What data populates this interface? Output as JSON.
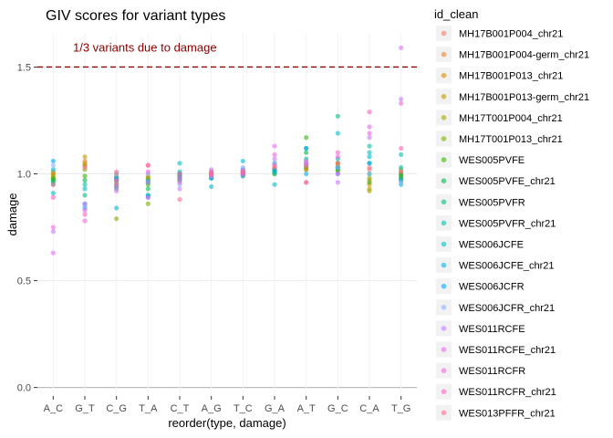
{
  "chart_data": {
    "type": "scatter",
    "title": "GIV scores for variant types",
    "xlabel": "reorder(type, damage)",
    "ylabel": "damage",
    "categories": [
      "A_C",
      "G_T",
      "C_G",
      "T_A",
      "C_T",
      "A_G",
      "T_C",
      "G_A",
      "A_T",
      "G_C",
      "C_A",
      "T_G"
    ],
    "ylim": [
      -0.04,
      1.66
    ],
    "yticks": [
      0.0,
      0.5,
      1.0,
      1.5
    ],
    "ytick_labels": [
      "0.0",
      "0.5",
      "1.0",
      "1.5"
    ],
    "grid": true,
    "legend": {
      "title": "id_clean",
      "position": "right"
    },
    "reference_line": {
      "y": 1.5,
      "label": "1/3 variants due to damage",
      "color": "#8b0000",
      "style": "dashed"
    },
    "series": [
      {
        "name": "MH17B001P004_chr21",
        "color": "#F8766D",
        "values": [
          1.0,
          1.04,
          0.97,
          0.96,
          0.99,
          1.0,
          1.0,
          1.01,
          1.02,
          1.03,
          1.02,
          1.01
        ]
      },
      {
        "name": "MH17B001P004-germ_chr21",
        "color": "#EA8331",
        "values": [
          0.98,
          1.06,
          1.0,
          0.97,
          0.98,
          1.01,
          1.01,
          1.03,
          1.04,
          1.05,
          0.97,
          0.99
        ]
      },
      {
        "name": "MH17B001P013_chr21",
        "color": "#D89000",
        "values": [
          1.01,
          1.05,
          0.99,
          0.98,
          0.97,
          1.0,
          0.99,
          1.02,
          1.03,
          1.04,
          0.95,
          0.98
        ]
      },
      {
        "name": "MH17B001P013-germ_chr21",
        "color": "#C09B00",
        "values": [
          1.0,
          1.08,
          0.98,
          0.99,
          0.99,
          1.0,
          1.0,
          1.01,
          1.02,
          1.02,
          0.93,
          1.0
        ]
      },
      {
        "name": "MH17T001P004_chr21",
        "color": "#A3A500",
        "values": [
          0.99,
          1.04,
          0.96,
          0.98,
          1.0,
          0.99,
          1.0,
          1.02,
          1.04,
          1.01,
          0.92,
          1.02
        ]
      },
      {
        "name": "MH17T001P013_chr21",
        "color": "#7CAE00",
        "values": [
          0.97,
          1.02,
          0.79,
          0.86,
          0.98,
          1.0,
          1.01,
          1.0,
          1.03,
          1.05,
          0.98,
          0.97
        ]
      },
      {
        "name": "WES005PVFE",
        "color": "#39B600",
        "values": [
          0.98,
          0.99,
          0.95,
          0.95,
          1.0,
          0.98,
          1.0,
          1.01,
          1.17,
          1.03,
          0.96,
          0.99
        ]
      },
      {
        "name": "WES005PVFE_chr21",
        "color": "#00BB4E",
        "values": [
          0.97,
          0.97,
          0.94,
          0.93,
          0.99,
          1.0,
          1.01,
          1.02,
          1.1,
          1.02,
          1.0,
          1.0
        ]
      },
      {
        "name": "WES005PVFR",
        "color": "#00BF7D",
        "values": [
          0.96,
          0.9,
          0.93,
          0.9,
          0.97,
          0.99,
          1.0,
          1.0,
          1.07,
          1.27,
          1.05,
          0.98
        ]
      },
      {
        "name": "WES005PVFR_chr21",
        "color": "#00C1A3",
        "values": [
          0.95,
          0.95,
          0.97,
          0.96,
          1.01,
          0.98,
          1.02,
          1.05,
          1.12,
          1.07,
          1.13,
          1.03
        ]
      },
      {
        "name": "WES006JCFE",
        "color": "#00BFC4",
        "values": [
          0.91,
          0.93,
          0.98,
          0.97,
          1.05,
          0.94,
          1.06,
          0.95,
          1.05,
          1.19,
          1.1,
          1.09
        ]
      },
      {
        "name": "WES006JCFE_chr21",
        "color": "#00B8E5",
        "values": [
          1.02,
          0.86,
          0.84,
          0.9,
          1.0,
          0.99,
          0.99,
          1.01,
          1.0,
          1.03,
          1.08,
          0.95
        ]
      },
      {
        "name": "WES006JCFR",
        "color": "#00A9FF",
        "values": [
          1.06,
          0.84,
          0.98,
          0.89,
          0.98,
          0.98,
          1.0,
          1.02,
          1.12,
          1.0,
          1.05,
          0.97
        ]
      },
      {
        "name": "WES006JCFR_chr21",
        "color": "#8AB1FF",
        "values": [
          1.04,
          0.85,
          1.0,
          1.0,
          0.95,
          0.99,
          1.03,
          1.05,
          1.05,
          1.03,
          1.0,
          0.96
        ]
      },
      {
        "name": "WES011RCFE",
        "color": "#C77CFF",
        "values": [
          0.73,
          0.86,
          0.94,
          0.96,
          0.93,
          1.02,
          1.02,
          1.07,
          1.06,
          0.96,
          1.17,
          1.35
        ]
      },
      {
        "name": "WES011RCFE_chr21",
        "color": "#E76BF3",
        "values": [
          0.63,
          0.83,
          0.92,
          0.89,
          0.96,
          1.0,
          1.0,
          1.13,
          1.04,
          1.0,
          1.22,
          1.59
        ]
      },
      {
        "name": "WES011RCFR",
        "color": "#F564E3",
        "values": [
          0.75,
          0.78,
          0.95,
          1.01,
          0.98,
          0.99,
          1.01,
          1.09,
          1.05,
          1.08,
          1.19,
          1.33
        ]
      },
      {
        "name": "WES011RCFR_chr21",
        "color": "#FF61C3",
        "values": [
          0.89,
          0.81,
          0.97,
          1.04,
          1.0,
          1.01,
          1.0,
          1.04,
          0.96,
          1.1,
          1.29,
          1.12
        ]
      },
      {
        "name": "WES013PFFR_chr21",
        "color": "#FF6C91",
        "values": [
          0.95,
          1.03,
          1.01,
          1.04,
          0.88,
          1.0,
          1.01,
          1.03,
          0.96,
          1.05,
          1.03,
          1.01
        ]
      }
    ]
  }
}
